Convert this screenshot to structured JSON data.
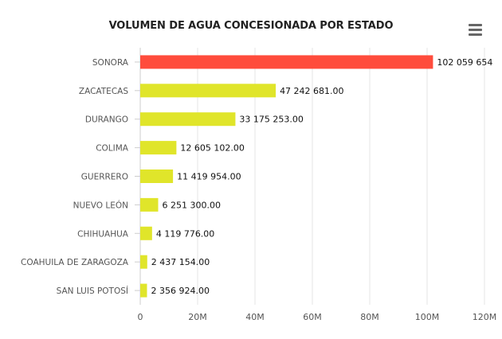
{
  "menu": {
    "icon": "hamburger-menu-icon"
  },
  "colors": {
    "highlight": "#ff4c3c",
    "bar": "#e0e52a",
    "grid": "#e6e6e6",
    "label": "#555555",
    "value": "#111111"
  },
  "chart_data": {
    "type": "bar",
    "orientation": "horizontal",
    "title": "VOLUMEN DE AGUA CONCESIONADA POR ESTADO",
    "categories": [
      "SONORA",
      "ZACATECAS",
      "DURANGO",
      "COLIMA",
      "GUERRERO",
      "NUEVO LEÓN",
      "CHIHUAHUA",
      "COAHUILA DE ZARAGOZA",
      "SAN LUIS POTOSÍ"
    ],
    "values": [
      102059654,
      47242681,
      33175253,
      12605102,
      11419954,
      6251300,
      4119776,
      2437154,
      2356924
    ],
    "value_labels": [
      "102 059 654",
      "47 242 681.00",
      "33 175 253.00",
      "12 605 102.00",
      "11 419 954.00",
      "6 251 300.00",
      "4 119 776.00",
      "2 437 154.00",
      "2 356 924.00"
    ],
    "highlight_index": 0,
    "xlim": [
      0,
      120000000
    ],
    "ticks": [
      0,
      20000000,
      40000000,
      60000000,
      80000000,
      100000000,
      120000000
    ],
    "tick_labels": [
      "0",
      "20M",
      "40M",
      "60M",
      "80M",
      "100M",
      "120M"
    ],
    "grid": true,
    "legend": "none"
  }
}
